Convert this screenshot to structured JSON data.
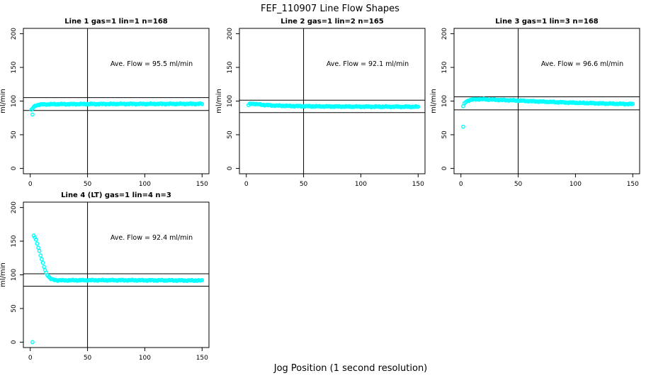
{
  "figure": {
    "title": "FEF_110907  Line Flow Shapes",
    "xlabel": "Jog Position (1 second resolution)",
    "point_color": "#00FFFF",
    "axis_color": "#000000",
    "background": "#FFFFFF"
  },
  "chart_data": [
    {
      "type": "scatter",
      "title": "Line 1 gas=1 lin=1 n=168",
      "annotation": "Ave. Flow =  95.5  ml/min",
      "avg_flow_ml_min": 95.5,
      "n": 168,
      "ylabel": "ml/min",
      "x_ticks": [
        0,
        50,
        100,
        150
      ],
      "y_ticks": [
        0,
        50,
        100,
        150,
        200
      ],
      "xlim": [
        -6,
        156
      ],
      "ylim": [
        -8,
        208
      ],
      "ref_h": [
        105.1,
        86.0
      ],
      "ref_v": 50,
      "outliers": [
        [
          2,
          80
        ]
      ],
      "profile": [
        [
          1,
          86.5
        ],
        [
          2,
          89
        ],
        [
          3,
          91
        ],
        [
          4,
          92.5
        ],
        [
          5,
          93.5
        ],
        [
          7,
          94.5
        ],
        [
          10,
          95
        ],
        [
          20,
          95.3
        ],
        [
          40,
          95.5
        ],
        [
          60,
          95.6
        ],
        [
          80,
          95.7
        ],
        [
          100,
          95.7
        ],
        [
          120,
          95.8
        ],
        [
          150,
          95.8
        ]
      ]
    },
    {
      "type": "scatter",
      "title": "Line 2 gas=1 lin=2 n=165",
      "annotation": "Ave. Flow =  92.1  ml/min",
      "avg_flow_ml_min": 92.1,
      "n": 165,
      "ylabel": "ml/min",
      "x_ticks": [
        0,
        50,
        100,
        150
      ],
      "y_ticks": [
        0,
        50,
        100,
        150,
        200
      ],
      "xlim": [
        -6,
        156
      ],
      "ylim": [
        -8,
        208
      ],
      "ref_h": [
        101.3,
        82.9
      ],
      "ref_v": 50,
      "outliers": [],
      "profile": [
        [
          2,
          94
        ],
        [
          3,
          95.5
        ],
        [
          4,
          96.2
        ],
        [
          6,
          96
        ],
        [
          10,
          95.2
        ],
        [
          15,
          94.3
        ],
        [
          25,
          93.3
        ],
        [
          40,
          92.6
        ],
        [
          60,
          92.1
        ],
        [
          90,
          91.8
        ],
        [
          120,
          91.6
        ],
        [
          150,
          91.5
        ]
      ]
    },
    {
      "type": "scatter",
      "title": "Line 3 gas=1 lin=3 n=168",
      "annotation": "Ave. Flow =  96.6  ml/min",
      "avg_flow_ml_min": 96.6,
      "n": 168,
      "ylabel": "ml/min",
      "x_ticks": [
        0,
        50,
        100,
        150
      ],
      "y_ticks": [
        0,
        50,
        100,
        150,
        200
      ],
      "xlim": [
        -6,
        156
      ],
      "ylim": [
        -8,
        208
      ],
      "ref_h": [
        106.3,
        86.9
      ],
      "ref_v": 50,
      "outliers": [
        [
          2,
          62
        ]
      ],
      "profile": [
        [
          2,
          92
        ],
        [
          3,
          96
        ],
        [
          4,
          98.5
        ],
        [
          6,
          100.5
        ],
        [
          9,
          102
        ],
        [
          14,
          102.8
        ],
        [
          20,
          102.7
        ],
        [
          30,
          102
        ],
        [
          50,
          100.7
        ],
        [
          70,
          99.2
        ],
        [
          90,
          98
        ],
        [
          110,
          97
        ],
        [
          130,
          96.2
        ],
        [
          150,
          95.5
        ]
      ]
    },
    {
      "type": "scatter",
      "title": "Line 4 (LT) gas=1 lin=4 n=3",
      "annotation": "Ave. Flow =  92.4  ml/min",
      "avg_flow_ml_min": 92.4,
      "n": 3,
      "ylabel": "ml/min",
      "x_ticks": [
        0,
        50,
        100,
        150
      ],
      "y_ticks": [
        0,
        50,
        100,
        150,
        200
      ],
      "xlim": [
        -6,
        156
      ],
      "ylim": [
        -8,
        208
      ],
      "ref_h": [
        101.6,
        83.2
      ],
      "ref_v": 50,
      "outliers": [
        [
          2,
          0
        ]
      ],
      "profile": [
        [
          3,
          158
        ],
        [
          4,
          156
        ],
        [
          5,
          152
        ],
        [
          6,
          147
        ],
        [
          7,
          141
        ],
        [
          8,
          135
        ],
        [
          9,
          129
        ],
        [
          10,
          123
        ],
        [
          11,
          117
        ],
        [
          12,
          112
        ],
        [
          13,
          107
        ],
        [
          14,
          103
        ],
        [
          15,
          100
        ],
        [
          16,
          97.5
        ],
        [
          17,
          95.5
        ],
        [
          18,
          94
        ],
        [
          20,
          92.7
        ],
        [
          23,
          92
        ],
        [
          30,
          91.8
        ],
        [
          50,
          92
        ],
        [
          80,
          92
        ],
        [
          120,
          91.8
        ],
        [
          150,
          91.5
        ]
      ]
    }
  ]
}
